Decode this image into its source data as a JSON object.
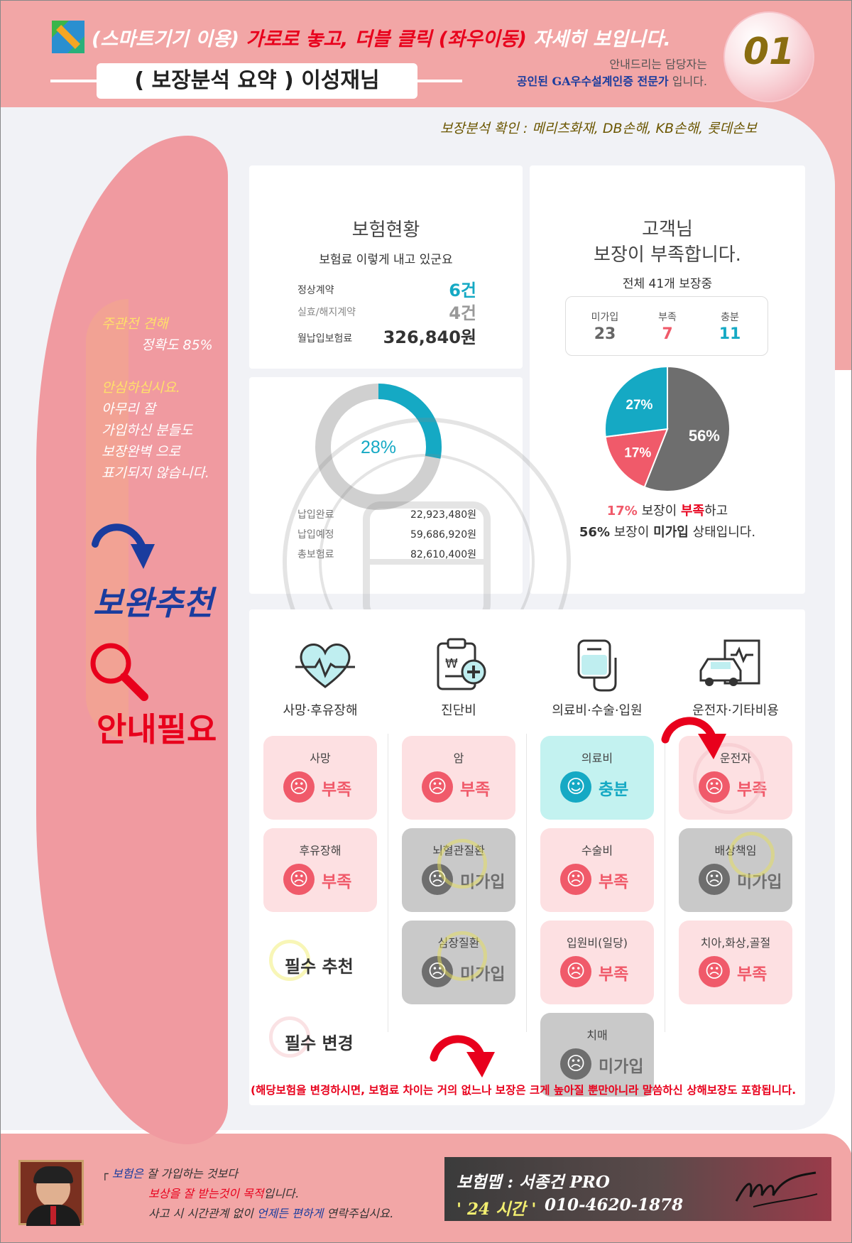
{
  "header": {
    "notice_prefix": "(스마트기기 이용)",
    "notice_red": "가로로 놓고, 더블 클릭 (좌우이동)",
    "notice_suffix": "자세히 보입니다.",
    "title": "( 보장분석 요약 ) 이성재님",
    "guide_line1": "안내드리는 담당자는",
    "guide_line2_blue": "공인된 GA우수설계인증 전문가",
    "guide_line2_rest": "입니다.",
    "page_number": "01",
    "insurers": "보장분석 확인 : 메리츠화재, DB손해, KB손해, 롯데손보"
  },
  "sidebar": {
    "accuracy_l1": "주관전 견해",
    "accuracy_l2": "정확도 85%",
    "reassure_title": "안심하십시요.",
    "reassure_l1": "아무리 잘",
    "reassure_l2": "가입하신 분들도",
    "reassure_l3": "보장완벽 으로",
    "reassure_l4": "표기되지 않습니다.",
    "recommend": "보완추천",
    "need_guide": "안내필요"
  },
  "insurance_status": {
    "title": "보험현황",
    "subtitle": "보험료 이렇게 내고 있군요",
    "rows": [
      {
        "label": "정상계약",
        "value": "6건"
      },
      {
        "label": "실효/해지계약",
        "value": "4건"
      },
      {
        "label": "월납입보험료",
        "value": "326,840원"
      }
    ]
  },
  "payment": {
    "percent": "28%",
    "rows": [
      {
        "label": "납입완료",
        "value": "22,923,480원"
      },
      {
        "label": "납입예정",
        "value": "59,686,920원"
      },
      {
        "label": "총보험료",
        "value": "82,610,400원"
      }
    ]
  },
  "coverage": {
    "title_l1": "고객님",
    "title_l2": "보장이 부족합니다.",
    "subtitle": "전체 41개 보장중",
    "stats": [
      {
        "label": "미가입",
        "value": "23",
        "color": "#666666"
      },
      {
        "label": "부족",
        "value": "7",
        "color": "#f05a6a"
      },
      {
        "label": "충분",
        "value": "11",
        "color": "#15a9c4"
      }
    ],
    "summary_l1_pct": "17%",
    "summary_l1_a": "보장이",
    "summary_l1_b": "부족",
    "summary_l1_c": "하고",
    "summary_l2_pct": "56%",
    "summary_l2_a": "보장이",
    "summary_l2_b": "미가입",
    "summary_l2_c": "상태입니다."
  },
  "chart_data": [
    {
      "type": "pie",
      "title": "",
      "categories": [
        "미가입",
        "부족",
        "충분"
      ],
      "values": [
        56,
        17,
        27
      ],
      "labels": [
        "56%",
        "17%",
        "27%"
      ],
      "colors": [
        "#6e6e6e",
        "#f05a6a",
        "#15a9c4"
      ]
    },
    {
      "type": "pie",
      "title": "",
      "categories": [
        "납입완료",
        "납입예정"
      ],
      "values": [
        28,
        72
      ],
      "labels": [
        "28%",
        ""
      ],
      "colors": [
        "#15a9c4",
        "#d0d0d0"
      ]
    }
  ],
  "categories": [
    {
      "label": "사망·후유장해",
      "icon": "heart-pulse-icon"
    },
    {
      "label": "진단비",
      "icon": "clipboard-icon"
    },
    {
      "label": "의료비·수술·입원",
      "icon": "iv-bag-icon"
    },
    {
      "label": "운전자·기타비용",
      "icon": "car-icon"
    }
  ],
  "boxes": {
    "c1": [
      {
        "label": "사망",
        "status": "부족"
      },
      {
        "label": "후유장해",
        "status": "부족"
      }
    ],
    "c2": [
      {
        "label": "암",
        "status": "부족"
      },
      {
        "label": "뇌혈관질환",
        "status": "미가입"
      },
      {
        "label": "심장질환",
        "status": "미가입"
      }
    ],
    "c3": [
      {
        "label": "의료비",
        "status": "충분"
      },
      {
        "label": "수술비",
        "status": "부족"
      },
      {
        "label": "입원비(일당)",
        "status": "부족"
      },
      {
        "label": "치매",
        "status": "미가입"
      }
    ],
    "c4": [
      {
        "label": "운전자",
        "status": "부족"
      },
      {
        "label": "배상책임",
        "status": "미가입"
      },
      {
        "label": "치아,화상,골절",
        "status": "부족"
      }
    ]
  },
  "legend_notes": {
    "essential_recommend": "필수 추천",
    "essential_change": "필수 변경"
  },
  "notice": "(해당보험을 변경하시면, 보험료 차이는 거의 없느나 보장은 크게 높아질 뿐만아니라 말씀하신 상해보장도 포함됩니다.",
  "footer": {
    "l1_blue": "보험은",
    "l1_rest": "잘 가입하는 것보다",
    "l2_red": "보상을 잘 받는것이 목적",
    "l2_rest": "입니다.",
    "l3_a": "사고 시 시간관계 없이",
    "l3_blue": "언제든 편하게",
    "l3_b": "연락주십시요.",
    "agent": "보험맵 : 서종건 PRO",
    "hours": "' 24 시간 '",
    "phone": "010-4620-1878"
  },
  "colors": {
    "pink": "#f2a6a6",
    "red": "#e8001c",
    "blue": "#1a3c9e",
    "cyan": "#15a9c4",
    "gray": "#6e6e6e"
  }
}
